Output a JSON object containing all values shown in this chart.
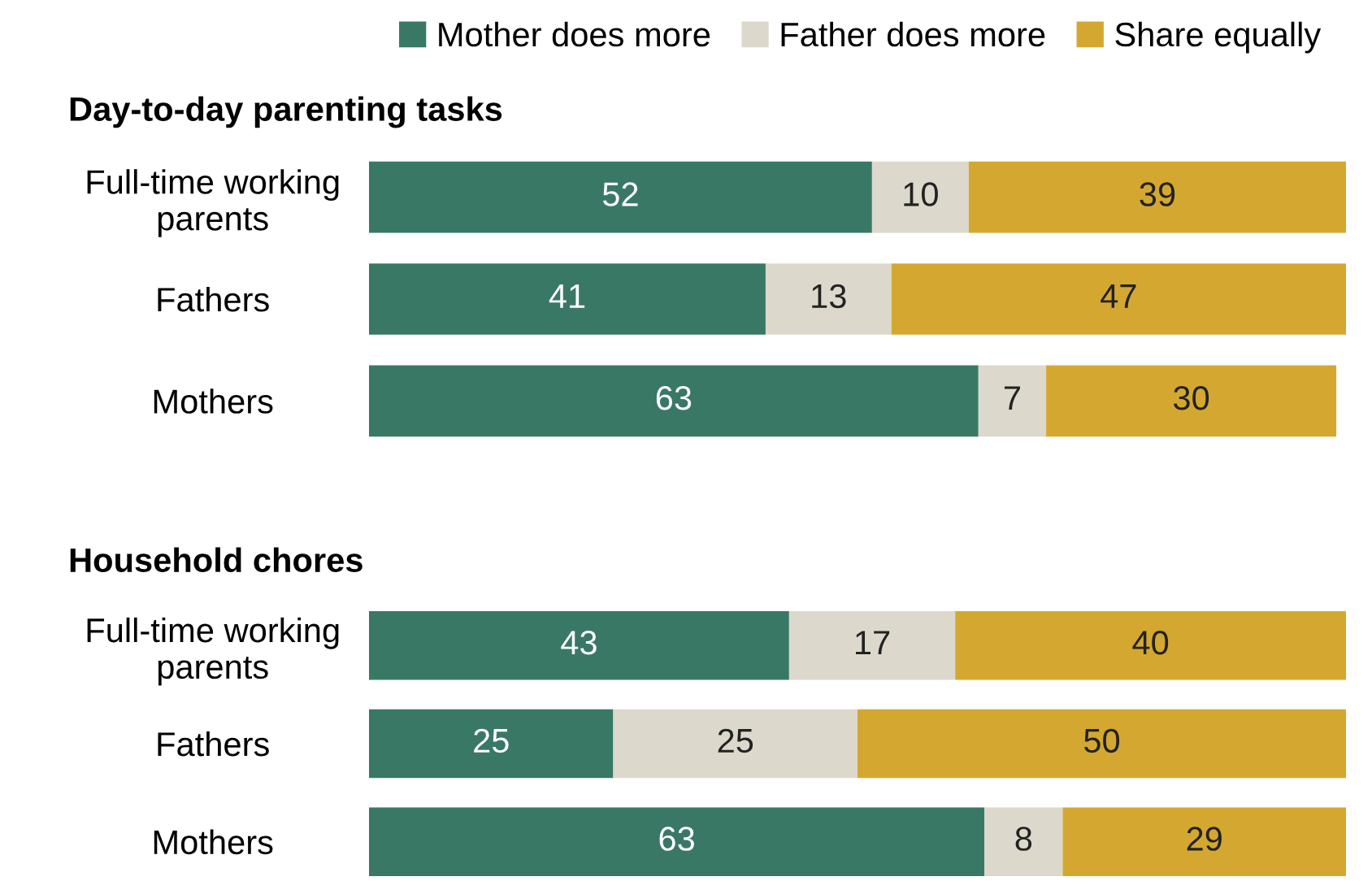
{
  "chart_data": [
    {
      "type": "bar",
      "orientation": "horizontal",
      "stacked": true,
      "title": "Day-to-day parenting tasks",
      "categories": [
        "Full-time working\nparents",
        "Fathers",
        "Mothers"
      ],
      "series": [
        {
          "name": "Mother does more",
          "color": "#3a7866",
          "values": [
            52,
            41,
            63
          ]
        },
        {
          "name": "Father does more",
          "color": "#dcd9cc",
          "values": [
            10,
            13,
            7
          ]
        },
        {
          "name": "Share equally",
          "color": "#d4a830",
          "values": [
            39,
            47,
            30
          ]
        }
      ],
      "tick_labels": "y",
      "data_labels": true,
      "legend": "top right",
      "grid": false
    },
    {
      "type": "bar",
      "orientation": "horizontal",
      "stacked": true,
      "title": "Household chores",
      "categories": [
        "Full-time working\nparents",
        "Fathers",
        "Mothers"
      ],
      "series": [
        {
          "color": "#3a7866",
          "values": [
            43,
            25,
            63
          ]
        },
        {
          "color": "#dcd9cc",
          "values": [
            17,
            25,
            8
          ]
        },
        {
          "color": "#d4a830",
          "values": [
            40,
            50,
            29
          ]
        }
      ],
      "tick_labels": "y",
      "data_labels": true,
      "grid": false
    }
  ]
}
